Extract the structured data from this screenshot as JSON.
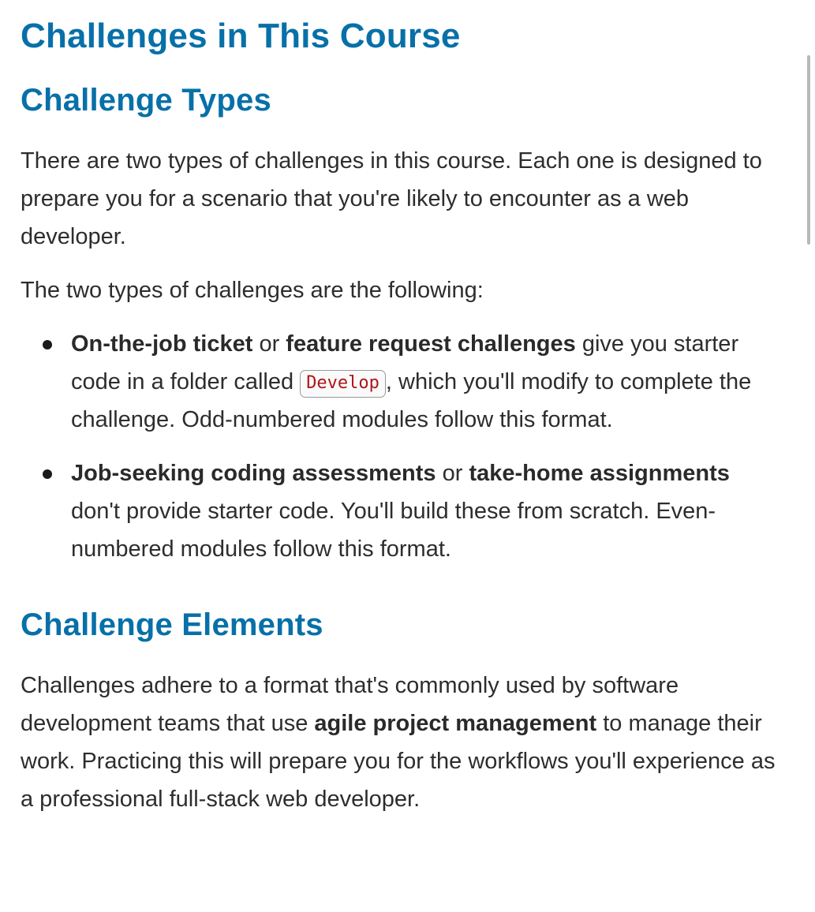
{
  "page": {
    "title": "Challenges in This Course"
  },
  "types_section": {
    "heading": "Challenge Types",
    "intro": "There are two types of challenges in this course. Each one is designed to prepare you for a scenario that you're likely to encounter as a web developer.",
    "list_intro": "The two types of challenges are the following:",
    "items": [
      {
        "bold_a": "On-the-job ticket",
        "join": " or ",
        "bold_b": "feature request challenges",
        "text_before_code": " give you starter code in a folder called ",
        "code": "Develop",
        "text_after_code": ", which you'll modify to complete the challenge. Odd-numbered modules follow this format."
      },
      {
        "bold_a": "Job-seeking coding assessments",
        "join": " or ",
        "bold_b": "take-home assignments",
        "text": " don't provide starter code. You'll build these from scratch. Even-numbered modules follow this format."
      }
    ]
  },
  "elements_section": {
    "heading": "Challenge Elements",
    "text_before": "Challenges adhere to a format that's commonly used by software development teams that use ",
    "bold": "agile project management",
    "text_after": " to manage their work. Practicing this will prepare you for the workflows you'll experience as a professional full-stack web developer."
  },
  "colors": {
    "heading": "#0770a8",
    "body_text": "#2d2d2d",
    "code_text": "#b0141a"
  }
}
